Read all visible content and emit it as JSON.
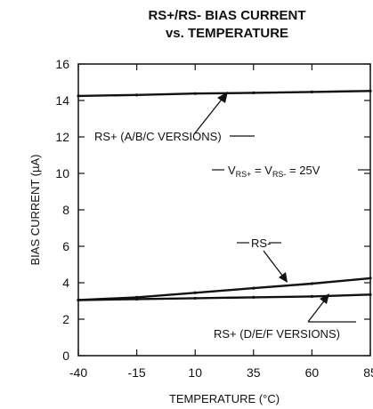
{
  "chart_data": {
    "type": "line",
    "title": [
      "RS+/RS- BIAS CURRENT",
      "vs. TEMPERATURE"
    ],
    "xlabel": "TEMPERATURE (°C)",
    "ylabel": "BIAS CURRENT (µA)",
    "xlim": [
      -40,
      85
    ],
    "ylim": [
      0,
      16
    ],
    "xticks": [
      -40,
      -15,
      10,
      35,
      60,
      85
    ],
    "yticks": [
      0,
      2,
      4,
      6,
      8,
      10,
      12,
      14,
      16
    ],
    "grid": false,
    "series": [
      {
        "name": "RS+ (A/B/C VERSIONS)",
        "x": [
          -40,
          -15,
          10,
          35,
          60,
          85
        ],
        "y": [
          14.25,
          14.3,
          14.38,
          14.42,
          14.47,
          14.52
        ]
      },
      {
        "name": "RS-",
        "x": [
          -40,
          -15,
          10,
          35,
          60,
          85
        ],
        "y": [
          3.05,
          3.2,
          3.45,
          3.7,
          3.95,
          4.25
        ]
      },
      {
        "name": "RS+ (D/E/F VERSIONS)",
        "x": [
          -40,
          -15,
          10,
          35,
          60,
          85
        ],
        "y": [
          3.05,
          3.1,
          3.15,
          3.2,
          3.25,
          3.35
        ]
      }
    ],
    "annotations": {
      "condition": {
        "v": "V",
        "rs_plus": "RS+",
        "mid": " = V",
        "rs_minus": "RS-",
        "end": " = 25V"
      }
    },
    "line_color": "#111111"
  }
}
